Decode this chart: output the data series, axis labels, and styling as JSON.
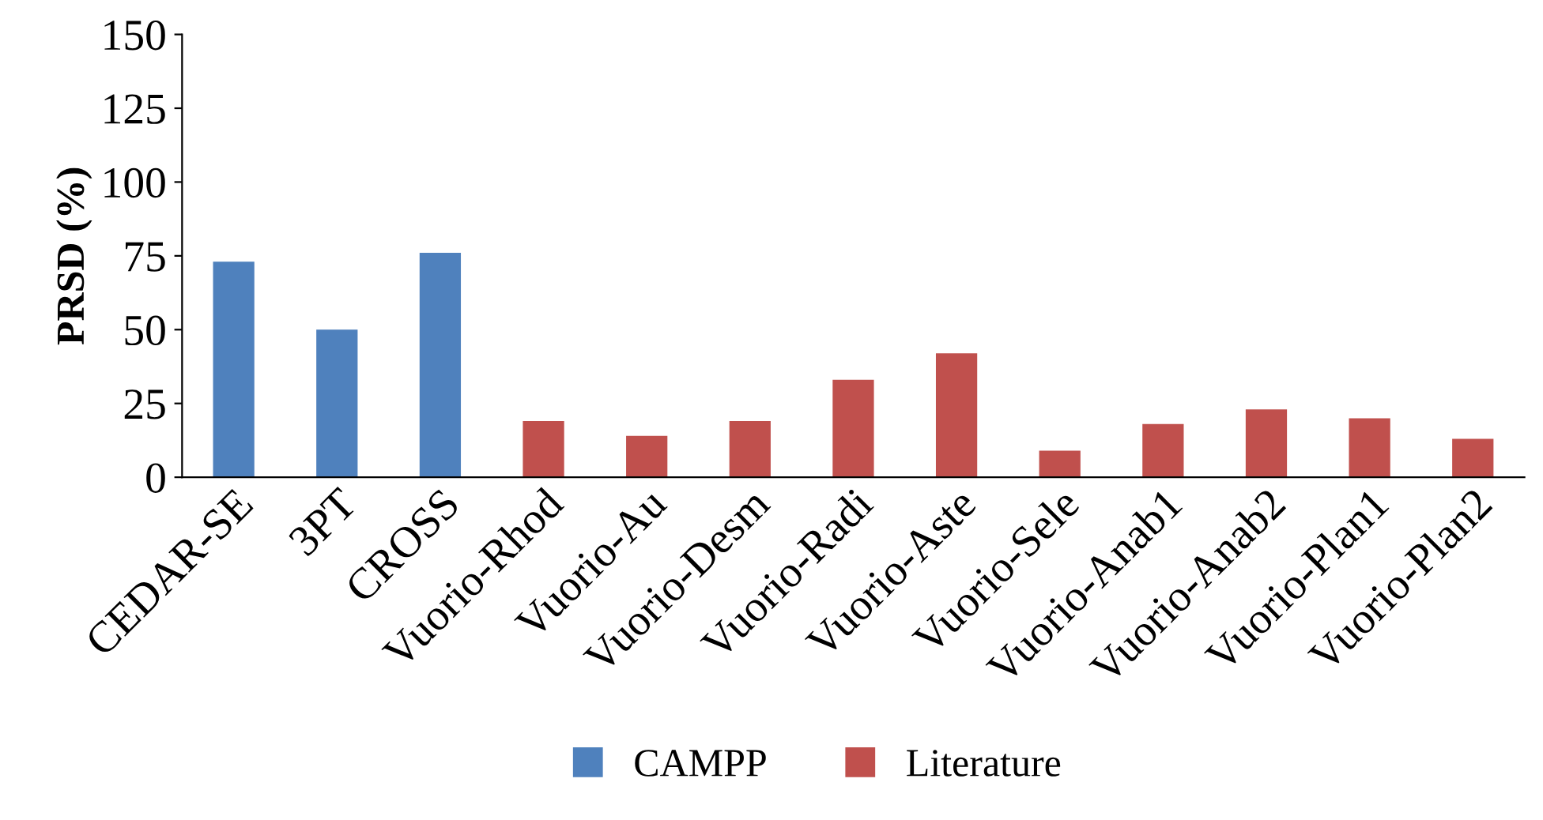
{
  "chart_data": {
    "type": "bar",
    "ylabel": "PRSD (%)",
    "categories": [
      "CEDAR-SE",
      "3PT",
      "CROSS",
      "Vuorio-Rhod",
      "Vuorio-Au",
      "Vuorio-Desm",
      "Vuorio-Radi",
      "Vuorio-Aste",
      "Vuorio-Sele",
      "Vuorio-Anab1",
      "Vuorio-Anab2",
      "Vuorio-Plan1",
      "Vuorio-Plan2"
    ],
    "series": [
      {
        "name": "CAMPP",
        "color": "#4f81bd",
        "values": [
          73,
          50,
          76,
          null,
          null,
          null,
          null,
          null,
          null,
          null,
          null,
          null,
          null
        ]
      },
      {
        "name": "Literature",
        "color": "#c0504d",
        "values": [
          null,
          null,
          null,
          19,
          14,
          19,
          33,
          42,
          9,
          18,
          23,
          20,
          13
        ]
      }
    ],
    "ylim": [
      0,
      150
    ],
    "yticks": [
      0,
      25,
      50,
      75,
      100,
      125,
      150
    ],
    "grid": false,
    "legend": "bottom"
  }
}
